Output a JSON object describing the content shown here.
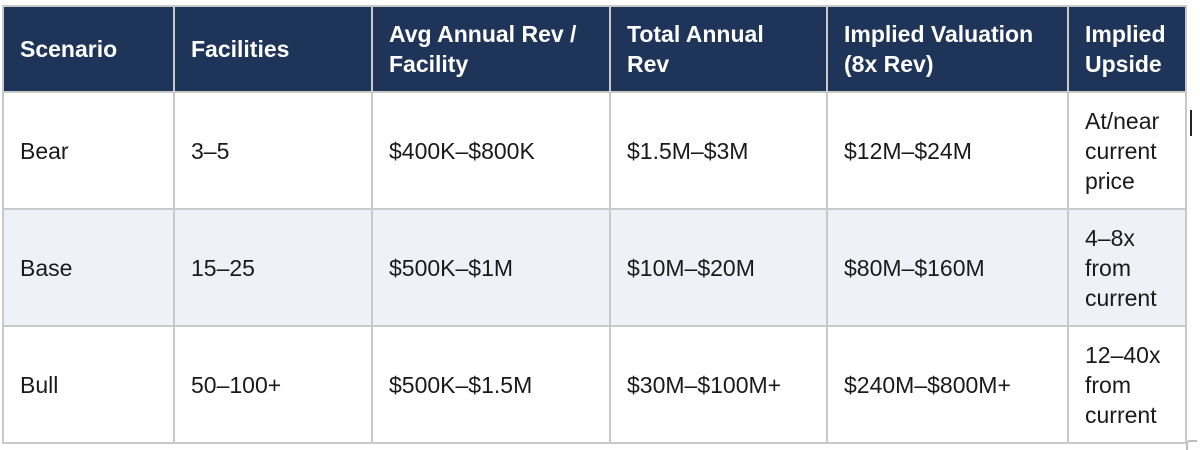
{
  "table": {
    "headers": [
      [
        "Scenario"
      ],
      [
        "Facilities"
      ],
      [
        "Avg Annual Rev /",
        "Facility"
      ],
      [
        "Total Annual",
        "Rev"
      ],
      [
        "Implied Valuation",
        "(8x Rev)"
      ],
      [
        "Implied",
        "Upside"
      ]
    ],
    "rows": [
      {
        "scenario": "Bear",
        "facilities": "3–5",
        "avg_rev": "$400K–$800K",
        "total_rev": "$1.5M–$3M",
        "valuation": "$12M–$24M",
        "upside": [
          "At/near",
          "current",
          "price"
        ]
      },
      {
        "scenario": "Base",
        "facilities": "15–25",
        "avg_rev": "$500K–$1M",
        "total_rev": "$10M–$20M",
        "valuation": "$80M–$160M",
        "upside": [
          "4–8x",
          "from",
          "current"
        ]
      },
      {
        "scenario": "Bull",
        "facilities": "50–100+",
        "avg_rev": "$500K–$1.5M",
        "total_rev": "$30M–$100M+",
        "valuation": "$240M–$800M+",
        "upside": [
          "12–40x",
          "from",
          "current"
        ]
      }
    ]
  },
  "colors": {
    "header_bg": "#1f3459",
    "header_text": "#ffffff",
    "alt_row_bg": "#eef2f8",
    "border": "#c9c9c9"
  }
}
